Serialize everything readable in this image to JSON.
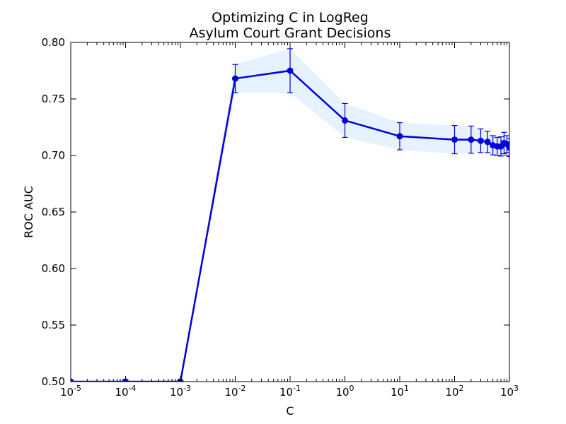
{
  "chart_data": {
    "type": "line",
    "title": "Optimizing C in LogReg",
    "subtitle": "Asylum Court Grant Decisions",
    "xlabel": "C",
    "ylabel": "ROC AUC",
    "x_scale": "log",
    "xlim": [
      1e-05,
      1000
    ],
    "ylim": [
      0.5,
      0.8
    ],
    "x_ticks": [
      {
        "value": 1e-05,
        "base": "10",
        "exp": "-5"
      },
      {
        "value": 0.0001,
        "base": "10",
        "exp": "-4"
      },
      {
        "value": 0.001,
        "base": "10",
        "exp": "-3"
      },
      {
        "value": 0.01,
        "base": "10",
        "exp": "-2"
      },
      {
        "value": 0.1,
        "base": "10",
        "exp": "-1"
      },
      {
        "value": 1,
        "base": "10",
        "exp": "0"
      },
      {
        "value": 10,
        "base": "10",
        "exp": "1"
      },
      {
        "value": 100,
        "base": "10",
        "exp": "2"
      },
      {
        "value": 1000,
        "base": "10",
        "exp": "3"
      }
    ],
    "y_ticks": [
      {
        "value": 0.5,
        "label": "0.50"
      },
      {
        "value": 0.55,
        "label": "0.55"
      },
      {
        "value": 0.6,
        "label": "0.60"
      },
      {
        "value": 0.65,
        "label": "0.65"
      },
      {
        "value": 0.7,
        "label": "0.70"
      },
      {
        "value": 0.75,
        "label": "0.75"
      },
      {
        "value": 0.8,
        "label": "0.80"
      }
    ],
    "grid": false,
    "legend": "none",
    "colors": {
      "line": "#0000dd",
      "marker": "#0000dd",
      "band": "#ddeeff"
    },
    "series": [
      {
        "x": [
          1e-05,
          0.0001,
          0.001,
          0.01,
          0.1,
          1,
          10,
          100,
          200,
          300,
          400,
          500,
          600,
          700,
          800,
          900,
          1000
        ],
        "y": [
          0.5,
          0.5,
          0.5,
          0.768,
          0.775,
          0.731,
          0.717,
          0.714,
          0.714,
          0.713,
          0.712,
          0.709,
          0.708,
          0.708,
          0.711,
          0.71,
          0.707
        ],
        "yerr": [
          0.0,
          0.0,
          0.0,
          0.0125,
          0.0195,
          0.015,
          0.012,
          0.0125,
          0.012,
          0.0105,
          0.0095,
          0.0085,
          0.008,
          0.0085,
          0.0095,
          0.0075,
          0.008
        ]
      }
    ]
  }
}
